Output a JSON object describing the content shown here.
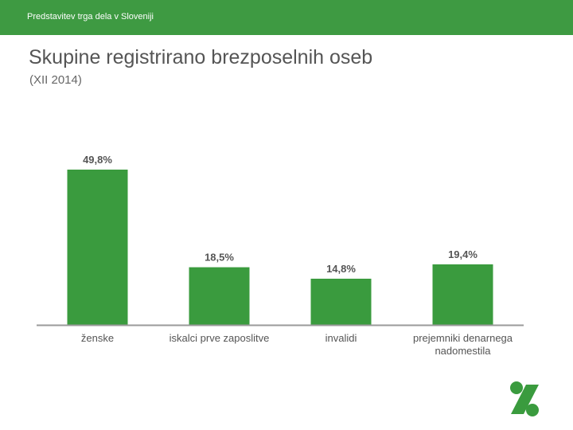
{
  "header": {
    "text": "Predstavitev trga dela v Sloveniji"
  },
  "colors": {
    "accent": "#3e9a42",
    "bar": "#3a9b3e",
    "axis": "#9a9a9a",
    "text": "#555555"
  },
  "logo": {
    "icon": "z-logo-icon"
  },
  "chart_data": {
    "type": "bar",
    "title": "Skupine registrirano brezposelnih oseb",
    "subtitle": "(XII 2014)",
    "categories": [
      [
        "ženske"
      ],
      [
        "iskalci prve zaposlitve"
      ],
      [
        "invalidi"
      ],
      [
        "prejemniki denarnega",
        "nadomestila"
      ]
    ],
    "values": [
      49.8,
      18.5,
      14.8,
      19.4
    ],
    "value_labels": [
      "49,8%",
      "18,5%",
      "14,8%",
      "19,4%"
    ],
    "unit": "%",
    "ylim": [
      0,
      50
    ],
    "grid": false,
    "legend": "none"
  }
}
